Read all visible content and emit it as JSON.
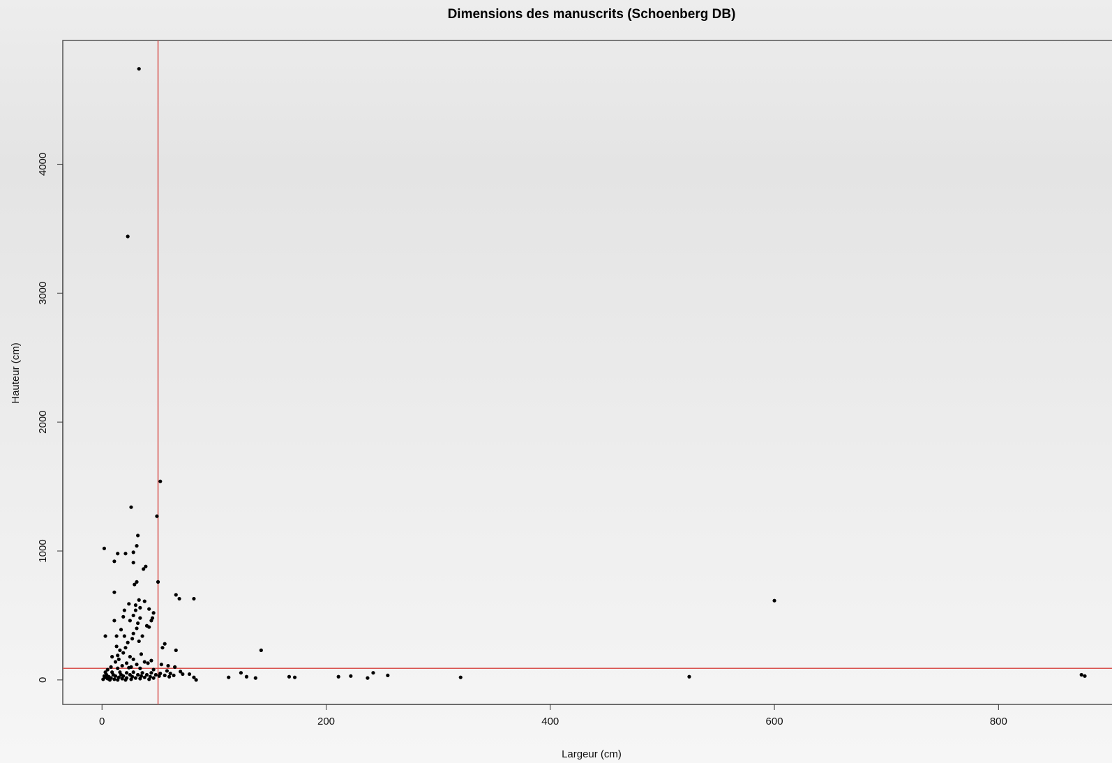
{
  "chart_data": {
    "type": "scatter",
    "title": "Dimensions des manuscrits (Schoenberg DB)",
    "xlabel": "Largeur (cm)",
    "ylabel": "Hauteur (cm)",
    "xlim": [
      -35,
      905
    ],
    "ylim": [
      -190,
      4960
    ],
    "x_ticks": [
      0,
      200,
      400,
      600,
      800
    ],
    "y_ticks": [
      0,
      1000,
      2000,
      3000,
      4000
    ],
    "reference_lines": [
      {
        "orientation": "vertical",
        "value": 50,
        "color": "#d9534f"
      },
      {
        "orientation": "horizontal",
        "value": 90,
        "color": "#d9534f"
      }
    ],
    "point_color": "#000000",
    "grid": false,
    "series": [
      {
        "points": [
          [
            33,
            4740
          ],
          [
            23,
            3440
          ],
          [
            52,
            1540
          ],
          [
            26,
            1340
          ],
          [
            49,
            1270
          ],
          [
            32,
            1120
          ],
          [
            31,
            1040
          ],
          [
            2,
            1020
          ],
          [
            14,
            980
          ],
          [
            21,
            980
          ],
          [
            28,
            990
          ],
          [
            11,
            920
          ],
          [
            28,
            910
          ],
          [
            39,
            880
          ],
          [
            37,
            860
          ],
          [
            31,
            760
          ],
          [
            29,
            740
          ],
          [
            50,
            760
          ],
          [
            11,
            680
          ],
          [
            66,
            660
          ],
          [
            69,
            630
          ],
          [
            82,
            630
          ],
          [
            600,
            615
          ],
          [
            33,
            620
          ],
          [
            38,
            610
          ],
          [
            30,
            580
          ],
          [
            34,
            560
          ],
          [
            24,
            590
          ],
          [
            30,
            540
          ],
          [
            42,
            550
          ],
          [
            46,
            520
          ],
          [
            20,
            540
          ],
          [
            28,
            500
          ],
          [
            34,
            480
          ],
          [
            25,
            460
          ],
          [
            19,
            490
          ],
          [
            32,
            440
          ],
          [
            40,
            420
          ],
          [
            45,
            480
          ],
          [
            44,
            460
          ],
          [
            11,
            460
          ],
          [
            42,
            410
          ],
          [
            31,
            400
          ],
          [
            17,
            390
          ],
          [
            28,
            360
          ],
          [
            20,
            340
          ],
          [
            13,
            340
          ],
          [
            3,
            340
          ],
          [
            27,
            320
          ],
          [
            23,
            290
          ],
          [
            33,
            300
          ],
          [
            36,
            340
          ],
          [
            56,
            280
          ],
          [
            54,
            250
          ],
          [
            13,
            260
          ],
          [
            21,
            250
          ],
          [
            16,
            230
          ],
          [
            66,
            230
          ],
          [
            142,
            230
          ],
          [
            19,
            210
          ],
          [
            14,
            190
          ],
          [
            25,
            180
          ],
          [
            35,
            200
          ],
          [
            28,
            160
          ],
          [
            44,
            150
          ],
          [
            9,
            180
          ],
          [
            15,
            160
          ],
          [
            41,
            130
          ],
          [
            12,
            140
          ],
          [
            53,
            120
          ],
          [
            38,
            140
          ],
          [
            22,
            130
          ],
          [
            31,
            120
          ],
          [
            59,
            110
          ],
          [
            65,
            100
          ],
          [
            18,
            110
          ],
          [
            26,
            100
          ],
          [
            8,
            100
          ],
          [
            5,
            80
          ],
          [
            14,
            90
          ],
          [
            24,
            95
          ],
          [
            34,
            90
          ],
          [
            46,
            80
          ],
          [
            58,
            70
          ],
          [
            70,
            65
          ],
          [
            3,
            60
          ],
          [
            9,
            60
          ],
          [
            16,
            60
          ],
          [
            22,
            55
          ],
          [
            28,
            60
          ],
          [
            36,
            55
          ],
          [
            44,
            55
          ],
          [
            52,
            50
          ],
          [
            61,
            50
          ],
          [
            72,
            45
          ],
          [
            78,
            45
          ],
          [
            4,
            40
          ],
          [
            10,
            40
          ],
          [
            17,
            40
          ],
          [
            25,
            40
          ],
          [
            32,
            40
          ],
          [
            40,
            40
          ],
          [
            48,
            40
          ],
          [
            56,
            35
          ],
          [
            64,
            35
          ],
          [
            2,
            30
          ],
          [
            6,
            25
          ],
          [
            12,
            30
          ],
          [
            19,
            30
          ],
          [
            27,
            25
          ],
          [
            35,
            30
          ],
          [
            43,
            25
          ],
          [
            51,
            30
          ],
          [
            60,
            25
          ],
          [
            82,
            20
          ],
          [
            3,
            20
          ],
          [
            8,
            15
          ],
          [
            15,
            20
          ],
          [
            22,
            15
          ],
          [
            30,
            15
          ],
          [
            38,
            20
          ],
          [
            46,
            15
          ],
          [
            84,
            0
          ],
          [
            5,
            10
          ],
          [
            11,
            5
          ],
          [
            18,
            10
          ],
          [
            26,
            5
          ],
          [
            34,
            10
          ],
          [
            42,
            5
          ],
          [
            1,
            5
          ],
          [
            7,
            0
          ],
          [
            14,
            0
          ],
          [
            21,
            0
          ],
          [
            113,
            20
          ],
          [
            124,
            55
          ],
          [
            129,
            25
          ],
          [
            137,
            15
          ],
          [
            167,
            25
          ],
          [
            172,
            20
          ],
          [
            211,
            25
          ],
          [
            222,
            30
          ],
          [
            237,
            15
          ],
          [
            242,
            55
          ],
          [
            255,
            35
          ],
          [
            320,
            20
          ],
          [
            524,
            25
          ],
          [
            874,
            40
          ],
          [
            877,
            30
          ]
        ]
      }
    ]
  }
}
